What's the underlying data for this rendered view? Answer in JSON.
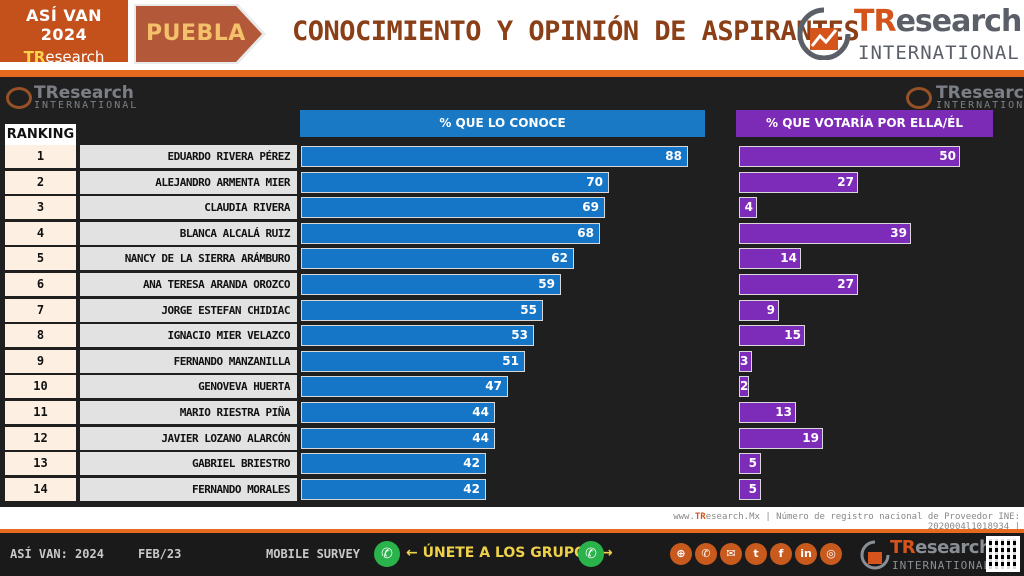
{
  "header": {
    "brand_line1": "ASÍ VAN 2024",
    "brand_line2_tr": "TR",
    "brand_line2_rest": "esearch",
    "state": "PUEBLA",
    "title": "CONOCIMIENTO Y OPINIÓN DE ASPIRANTES",
    "logo_tr": "TR",
    "logo_rest": "esearch",
    "logo_sub": "INTERNATIONAL"
  },
  "watermark": {
    "tr": "TR",
    "rest": "esearch",
    "sub": "INTERNATIONAL"
  },
  "columns": {
    "ranking": "RANKING",
    "known": "% QUE LO CONOCE",
    "vote": "% QUE VOTARÍA POR ELLA/ÉL"
  },
  "chart_data": {
    "type": "bar",
    "orientation": "horizontal",
    "title": "CONOCIMIENTO Y OPINIÓN DE ASPIRANTES",
    "ranks": [
      "1",
      "2",
      "3",
      "4",
      "5",
      "6",
      "7",
      "8",
      "9",
      "10",
      "11",
      "12",
      "13",
      "14"
    ],
    "categories": [
      "EDUARDO RIVERA PÉREZ",
      "ALEJANDRO ARMENTA MIER",
      "CLAUDIA RIVERA",
      "BLANCA ALCALÁ RUIZ",
      "NANCY DE LA SIERRA ARÁMBURO",
      "ANA TERESA ARANDA OROZCO",
      "JORGE ESTEFAN CHIDIAC",
      "IGNACIO MIER VELAZCO",
      "FERNANDO MANZANILLA",
      "GENOVEVA HUERTA",
      "MARIO RIESTRA PIÑA",
      "JAVIER LOZANO ALARCÓN",
      "GABRIEL BRIESTRO",
      "FERNANDO MORALES"
    ],
    "series": [
      {
        "name": "% QUE LO CONOCE",
        "color": "#1576c8",
        "values": [
          88,
          70,
          69,
          68,
          62,
          59,
          55,
          53,
          51,
          47,
          44,
          44,
          42,
          42
        ]
      },
      {
        "name": "% QUE VOTARÍA POR ELLA/ÉL",
        "color": "#7d2cba",
        "values": [
          50,
          27,
          4,
          39,
          14,
          27,
          9,
          15,
          3,
          2,
          13,
          19,
          5,
          5
        ]
      }
    ],
    "xlim": [
      0,
      100
    ],
    "grid": false
  },
  "source": {
    "pre": "www.",
    "tr": "TR",
    "post": "esearch.Mx | Número de registro nacional de Proveedor INE: 2020004l1018934 |"
  },
  "footer": {
    "series_label": "ASÍ VAN: 2024",
    "date": "FEB/23",
    "method": "MOBILE SURVEY",
    "join": "← ÚNETE A LOS GRUPOS →",
    "logo_tr": "TR",
    "logo_rest": "esearch",
    "logo_sub": "INTERNATIONAL",
    "social_icons": [
      "globe-icon",
      "phone-icon",
      "mail-icon",
      "twitter-icon",
      "facebook-icon",
      "linkedin-icon",
      "instagram-icon"
    ]
  }
}
